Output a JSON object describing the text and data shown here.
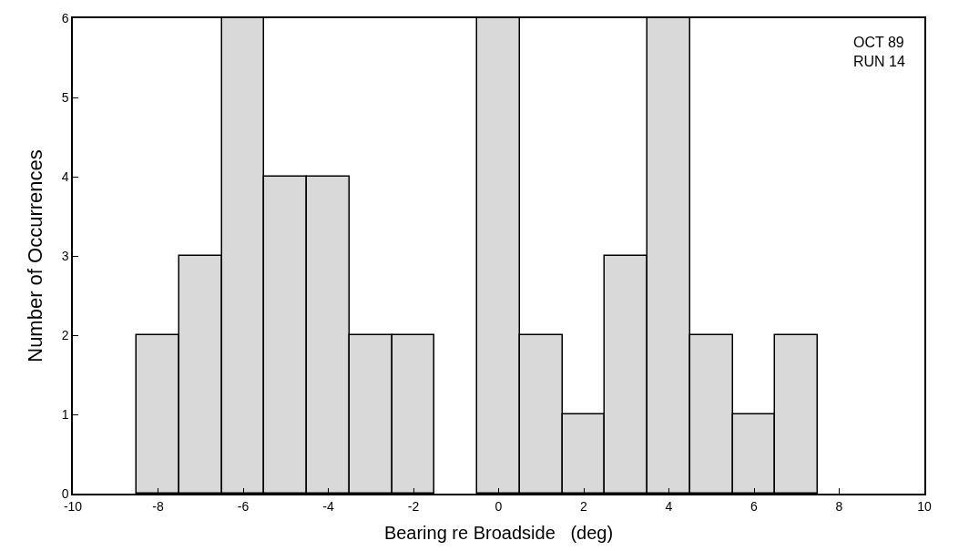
{
  "chart_data": {
    "type": "histogram",
    "xlabel": "Bearing re Broadside   (deg)",
    "ylabel": "Number of Occurrences",
    "bins": [
      -8.5,
      -7.5,
      -6.5,
      -5.5,
      -4.5,
      -3.5,
      -2.5,
      -1.5,
      -0.5,
      0.5,
      1.5,
      2.5,
      3.5,
      4.5,
      5.5,
      6.5,
      7.5
    ],
    "values": [
      2,
      3,
      6,
      4,
      4,
      2,
      2,
      0,
      6,
      2,
      1,
      3,
      6,
      2,
      1,
      2
    ],
    "color": "#d9d9d9",
    "xlim": [
      -10,
      10
    ],
    "xticks": [
      -10,
      -8,
      -6,
      -4,
      -2,
      0,
      2,
      4,
      6,
      8,
      10
    ],
    "ylim": [
      0,
      6
    ],
    "yticks": [
      0,
      1,
      2,
      3,
      4,
      5,
      6
    ],
    "annotations": [
      "OCT 89\nRUN 14"
    ]
  }
}
